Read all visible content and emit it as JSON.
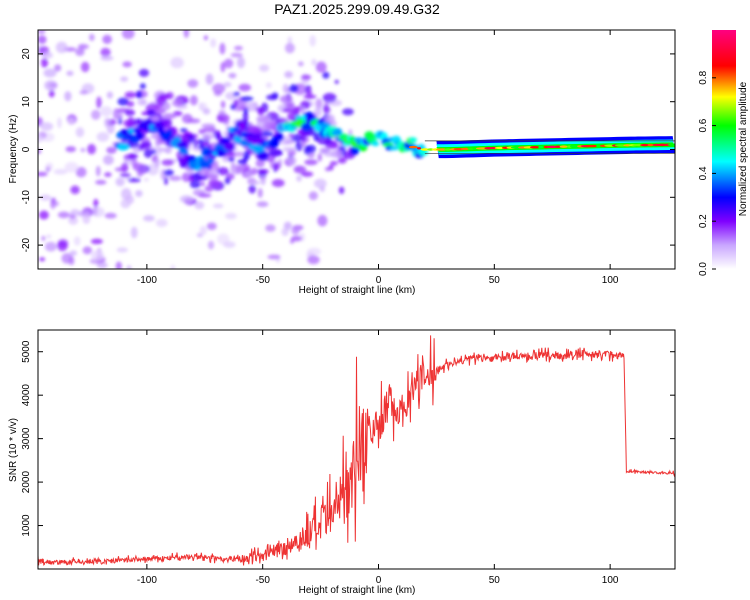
{
  "title": "PAZ1.2025.299.09.49.G32",
  "chart_data": [
    {
      "type": "heatmap",
      "name": "spectrogram",
      "xlabel": "Height of straight line (km)",
      "ylabel": "Frequency (Hz)",
      "xlim": [
        -147,
        128
      ],
      "ylim": [
        -25,
        25
      ],
      "xticks": [
        -100,
        -50,
        0,
        50,
        100
      ],
      "yticks": [
        -20,
        -10,
        0,
        10,
        20
      ],
      "xtick_labels": [
        "-100",
        "-50",
        "0",
        "50",
        "100"
      ],
      "ytick_labels": [
        "-20",
        "-10",
        "0",
        "10",
        "20"
      ],
      "colorbar": {
        "label": "Normalized spectral amplitude",
        "range": [
          0,
          1
        ],
        "ticks": [
          0.0,
          0.2,
          0.4,
          0.6,
          0.8
        ],
        "tick_labels": [
          "0.0",
          "0.2",
          "0.4",
          "0.6",
          "0.8"
        ],
        "colormap": [
          "#ffffff",
          "#7f00ff",
          "#0000ff",
          "#00ffff",
          "#00ff00",
          "#ffff00",
          "#ff0000",
          "#ff0080"
        ]
      },
      "ridge": {
        "description": "dominant frequency track",
        "x": [
          -110,
          -100,
          -90,
          -80,
          -70,
          -60,
          -50,
          -40,
          -30,
          -20,
          -10,
          0,
          10,
          20,
          30,
          50,
          70,
          90,
          110,
          128
        ],
        "y": [
          2,
          5,
          3,
          -3,
          -1,
          4,
          0,
          5,
          6,
          4,
          1,
          2,
          1,
          0,
          0,
          0.3,
          0.5,
          0.7,
          0.9,
          1.0
        ]
      }
    },
    {
      "type": "line",
      "name": "snr",
      "xlabel": "Height of straight line (km)",
      "ylabel": "SNR (10 * v/v)",
      "xlim": [
        -147,
        128
      ],
      "ylim": [
        0,
        5500
      ],
      "xticks": [
        -100,
        -50,
        0,
        50,
        100
      ],
      "yticks": [
        1000,
        2000,
        3000,
        4000,
        5000
      ],
      "xtick_labels": [
        "-100",
        "-50",
        "0",
        "50",
        "100"
      ],
      "ytick_labels": [
        "1000",
        "2000",
        "3000",
        "4000",
        "5000"
      ],
      "series": [
        {
          "name": "SNR",
          "color": "#ee3333",
          "x": [
            -147,
            -140,
            -120,
            -100,
            -80,
            -70,
            -60,
            -50,
            -40,
            -30,
            -20,
            -15,
            -10,
            -5,
            0,
            5,
            10,
            15,
            20,
            25,
            30,
            40,
            50,
            60,
            70,
            80,
            90,
            100,
            106,
            107,
            115,
            128
          ],
          "y": [
            200,
            150,
            170,
            230,
            280,
            250,
            220,
            300,
            500,
            800,
            1200,
            1700,
            2600,
            3100,
            3300,
            3900,
            3600,
            4200,
            4400,
            4600,
            4700,
            4850,
            4850,
            4900,
            4920,
            4900,
            4950,
            4950,
            4900,
            2250,
            2230,
            2200
          ]
        }
      ]
    }
  ]
}
